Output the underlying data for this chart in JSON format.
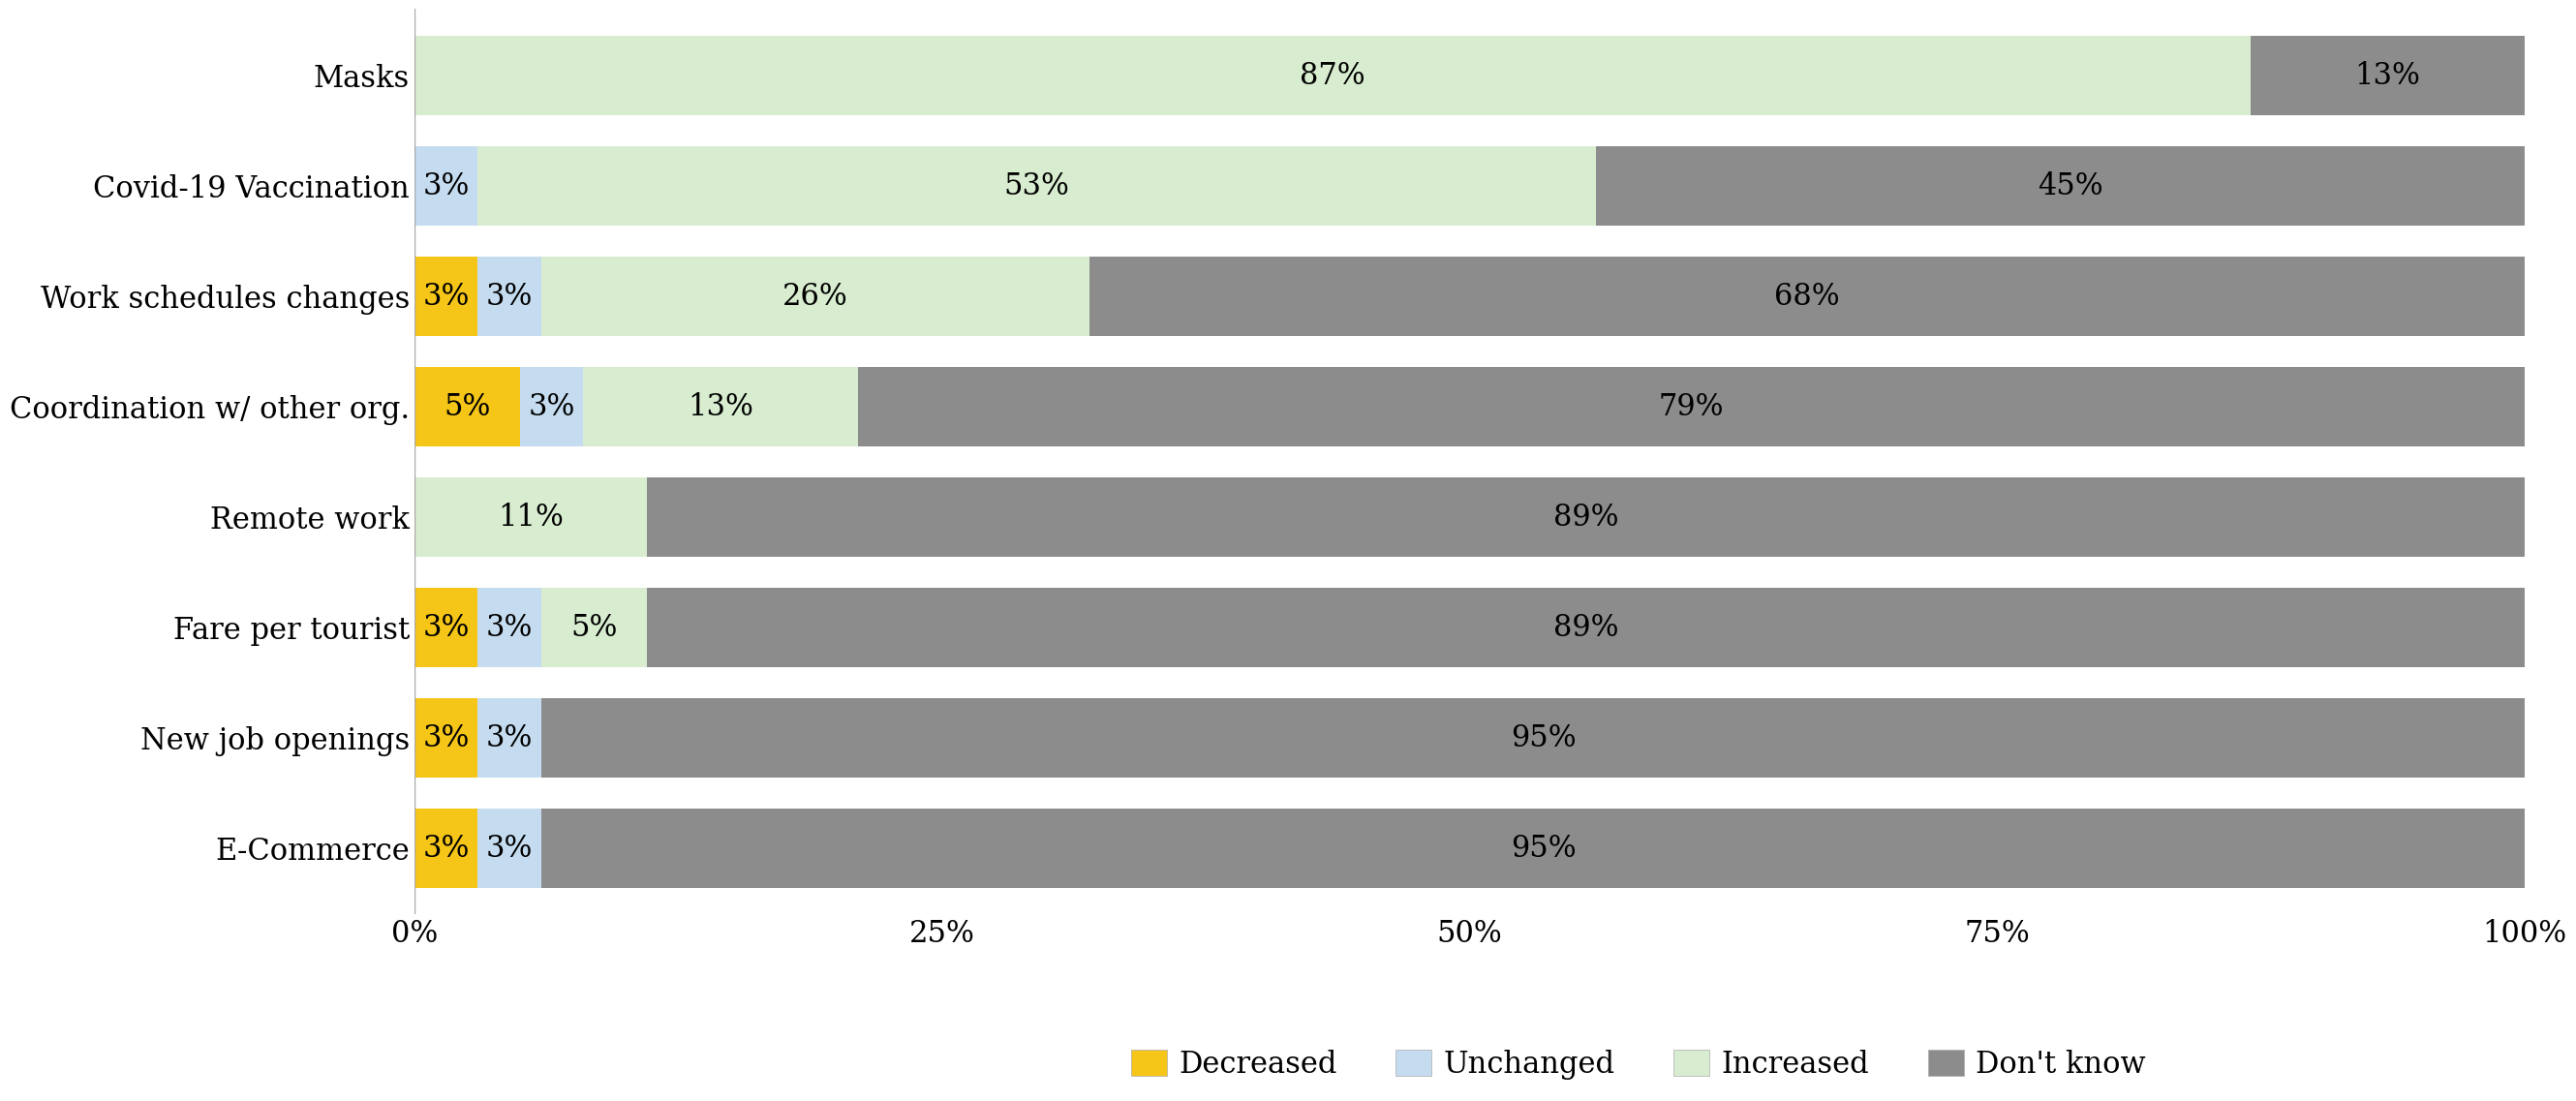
{
  "categories": [
    "Masks",
    "Covid-19 Vaccination",
    "Work schedules changes",
    "Coordination w/ other org.",
    "Remote work",
    "Fare per tourist",
    "New job openings",
    "E-Commerce"
  ],
  "series": {
    "Decreased": [
      0,
      0,
      3,
      5,
      0,
      3,
      3,
      3
    ],
    "Unchanged": [
      0,
      3,
      3,
      3,
      0,
      3,
      3,
      3
    ],
    "Increased": [
      87,
      53,
      26,
      13,
      11,
      5,
      0,
      0
    ],
    "Don't know": [
      13,
      45,
      68,
      79,
      89,
      89,
      95,
      95
    ]
  },
  "colors": {
    "Decreased": "#F5C518",
    "Unchanged": "#C5DCF0",
    "Increased": "#D8EDD0",
    "Don't know": "#8C8C8C"
  },
  "bar_labels": {
    "Decreased": [
      null,
      null,
      "3%",
      "5%",
      null,
      "3%",
      "3%",
      "3%"
    ],
    "Unchanged": [
      null,
      "3%",
      "3%",
      "3%",
      null,
      "3%",
      "3%",
      "3%"
    ],
    "Increased": [
      "87%",
      "53%",
      "26%",
      "13%",
      "11%",
      "5%",
      null,
      null
    ],
    "Don't know": [
      "13%",
      "45%",
      "68%",
      "79%",
      "89%",
      "89%",
      "95%",
      "95%"
    ]
  },
  "xlim": [
    0,
    100
  ],
  "xticks": [
    0,
    25,
    50,
    75,
    100
  ],
  "xticklabels": [
    "0%",
    "25%",
    "50%",
    "75%",
    "100%"
  ],
  "background_color": "#ffffff",
  "bar_height": 0.72,
  "font_family": "serif",
  "label_fontsize": 22,
  "tick_fontsize": 22,
  "legend_fontsize": 22
}
